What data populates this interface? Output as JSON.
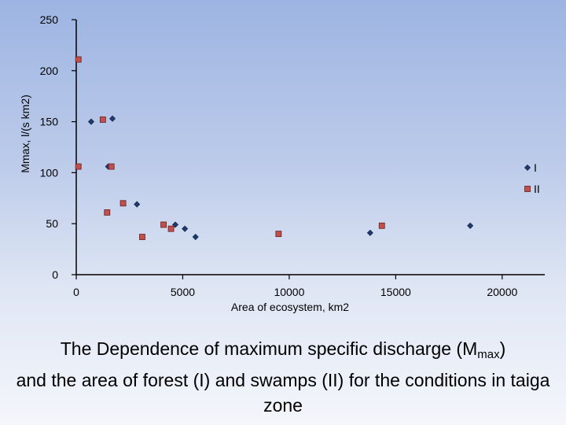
{
  "chart_data": {
    "type": "scatter",
    "title": "",
    "xlabel": "Area of ecosystem, km2",
    "ylabel": "Mmax, l/(s km2)",
    "xlim": [
      0,
      22000
    ],
    "ylim": [
      0,
      250
    ],
    "x_ticks": [
      0,
      5000,
      10000,
      15000,
      20000
    ],
    "y_ticks": [
      0,
      50,
      100,
      150,
      200,
      250
    ],
    "legend_position": "right",
    "series": [
      {
        "name": "I",
        "marker": "diamond",
        "color": "#1f3a6e",
        "points": [
          {
            "x": 700,
            "y": 150
          },
          {
            "x": 1700,
            "y": 153
          },
          {
            "x": 1500,
            "y": 106
          },
          {
            "x": 2850,
            "y": 69
          },
          {
            "x": 4650,
            "y": 49
          },
          {
            "x": 5100,
            "y": 45
          },
          {
            "x": 5600,
            "y": 37
          },
          {
            "x": 13800,
            "y": 41
          },
          {
            "x": 18500,
            "y": 48
          }
        ]
      },
      {
        "name": "II",
        "marker": "square",
        "color": "#c0504d",
        "points": [
          {
            "x": 100,
            "y": 211
          },
          {
            "x": 100,
            "y": 106
          },
          {
            "x": 1250,
            "y": 152
          },
          {
            "x": 1650,
            "y": 106
          },
          {
            "x": 1450,
            "y": 61
          },
          {
            "x": 2200,
            "y": 70
          },
          {
            "x": 3100,
            "y": 37
          },
          {
            "x": 4100,
            "y": 49
          },
          {
            "x": 4450,
            "y": 45
          },
          {
            "x": 9500,
            "y": 40
          },
          {
            "x": 14350,
            "y": 48
          }
        ]
      }
    ]
  },
  "caption": {
    "line1_before": "The Dependence of maximum specific discharge (M",
    "line1_sub": "max",
    "line1_after": ")",
    "rest": "and the area of forest (I) and swamps (II) for the conditions in taiga zone"
  }
}
